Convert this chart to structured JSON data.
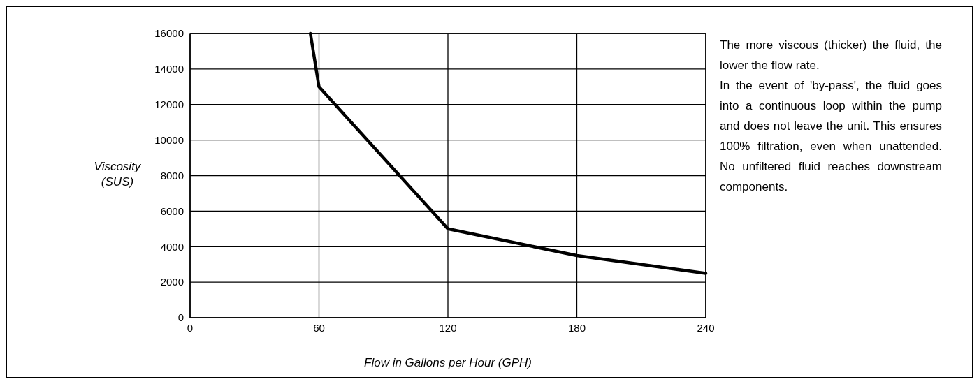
{
  "chart_data": {
    "type": "line",
    "xlabel": "Flow in Gallons per Hour (GPH)",
    "ylabel": "Viscosity (SUS)",
    "x": [
      56,
      60,
      120,
      180,
      240
    ],
    "series": [
      {
        "color": "#000000",
        "values": [
          16000,
          13000,
          5000,
          3500,
          2500
        ]
      }
    ],
    "xlim": [
      0,
      240
    ],
    "xticks": [
      0,
      60,
      120,
      180,
      240
    ],
    "ylim": [
      0,
      16000
    ],
    "yticks": [
      0,
      2000,
      4000,
      6000,
      8000,
      10000,
      12000,
      14000,
      16000
    ],
    "grid": true,
    "marker": "none",
    "line_style": "solid",
    "annotations": [
      "The more viscous (thicker) the fluid, the lower the flow rate.",
      "In the event of 'by-pass', the fluid goes into a continuous loop within the pump and does not leave the unit.  This ensures 100% filtration, even when unattended. No unfiltered fluid reaches downstream components."
    ]
  }
}
